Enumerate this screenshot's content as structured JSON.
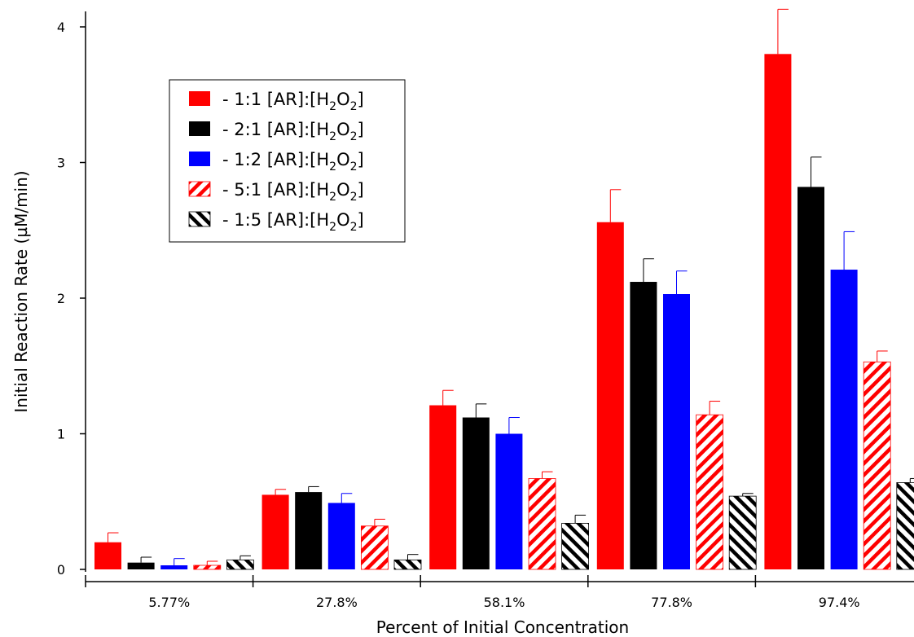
{
  "chart_data": {
    "type": "bar",
    "title": "",
    "xlabel": "Percent of Initial Concentration",
    "ylabel": "Initial Reaction Rate (µM/min)",
    "ylim": [
      0,
      4.1
    ],
    "yticks": [
      "0",
      "1",
      "2",
      "3",
      "4"
    ],
    "categories": [
      "5.77%",
      "27.8%",
      "58.1%",
      "77.8%",
      "97.4%"
    ],
    "grid": false,
    "legend_position": "top-left",
    "series": [
      {
        "name": "- 1:1 [AR]:[H2O2]",
        "legend": {
          "prefix": "- 1:1 [AR]:[H",
          "mid": "O",
          "suffix": "]"
        },
        "color": "#ff0000",
        "pattern": "solid",
        "values": [
          0.2,
          0.55,
          1.21,
          2.56,
          3.8
        ],
        "errors": [
          0.07,
          0.04,
          0.11,
          0.24,
          0.33
        ]
      },
      {
        "name": "- 2:1 [AR]:[H2O2]",
        "legend": {
          "prefix": "- 2:1 [AR]:[H",
          "mid": "O",
          "suffix": "]"
        },
        "color": "#000000",
        "pattern": "solid",
        "values": [
          0.05,
          0.57,
          1.12,
          2.12,
          2.82
        ],
        "errors": [
          0.04,
          0.04,
          0.1,
          0.17,
          0.22
        ]
      },
      {
        "name": "- 1:2 [AR]:[H2O2]",
        "legend": {
          "prefix": "- 1:2 [AR]:[H",
          "mid": "O",
          "suffix": "]"
        },
        "color": "#0000ff",
        "pattern": "solid",
        "values": [
          0.03,
          0.49,
          1.0,
          2.03,
          2.21
        ],
        "errors": [
          0.05,
          0.07,
          0.12,
          0.17,
          0.28
        ]
      },
      {
        "name": "- 5:1 [AR]:[H2O2]",
        "legend": {
          "prefix": "- 5:1 [AR]:[H",
          "mid": "O",
          "suffix": "]"
        },
        "color": "#ff0000",
        "pattern": "hatch",
        "values": [
          0.03,
          0.32,
          0.67,
          1.14,
          1.53
        ],
        "errors": [
          0.03,
          0.05,
          0.05,
          0.1,
          0.08
        ]
      },
      {
        "name": "- 1:5 [AR]:[H2O2]",
        "legend": {
          "prefix": "- 1:5 [AR]:[H",
          "mid": "O",
          "suffix": "]"
        },
        "color": "#000000",
        "pattern": "hatch",
        "values": [
          0.07,
          0.07,
          0.34,
          0.54,
          0.64
        ],
        "errors": [
          0.03,
          0.04,
          0.06,
          0.02,
          0.03
        ]
      }
    ]
  }
}
